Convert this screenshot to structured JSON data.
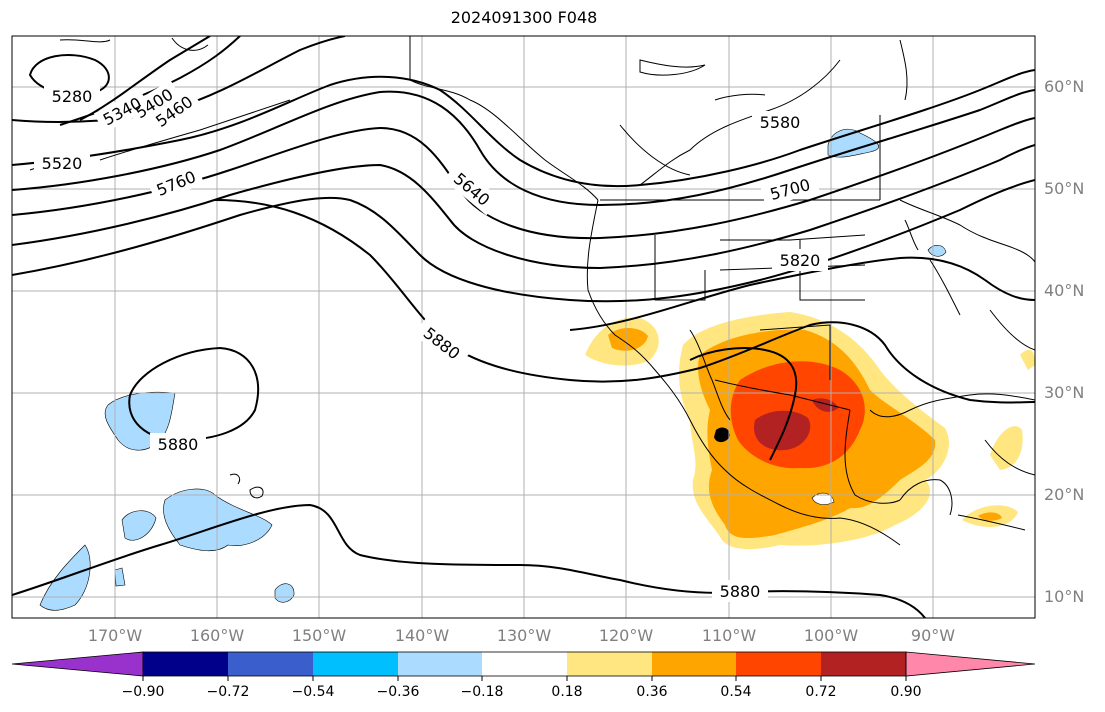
{
  "title": "2024091300 F048",
  "latitude_labels": [
    "60°N",
    "50°N",
    "40°N",
    "30°N",
    "20°N",
    "10°N"
  ],
  "longitude_labels": [
    "170°W",
    "160°W",
    "150°W",
    "140°W",
    "130°W",
    "120°W",
    "110°W",
    "100°W",
    "90°W"
  ],
  "contour_labels": [
    "5280",
    "5340",
    "5400",
    "5460",
    "5520",
    "5580",
    "5640",
    "5700",
    "5760",
    "5820",
    "5880",
    "5880",
    "5880"
  ],
  "colorbar": {
    "ticks": [
      "−0.90",
      "−0.72",
      "−0.54",
      "−0.36",
      "−0.18",
      "0.18",
      "0.36",
      "0.54",
      "0.72",
      "0.90"
    ],
    "colors": [
      "#9932cc",
      "#00008b",
      "#3a5fcd",
      "#00bfff",
      "#abdcff",
      "#ffffff",
      "#ffe680",
      "#ffa500",
      "#ff4500",
      "#b22222",
      "#ff88aa"
    ]
  }
}
